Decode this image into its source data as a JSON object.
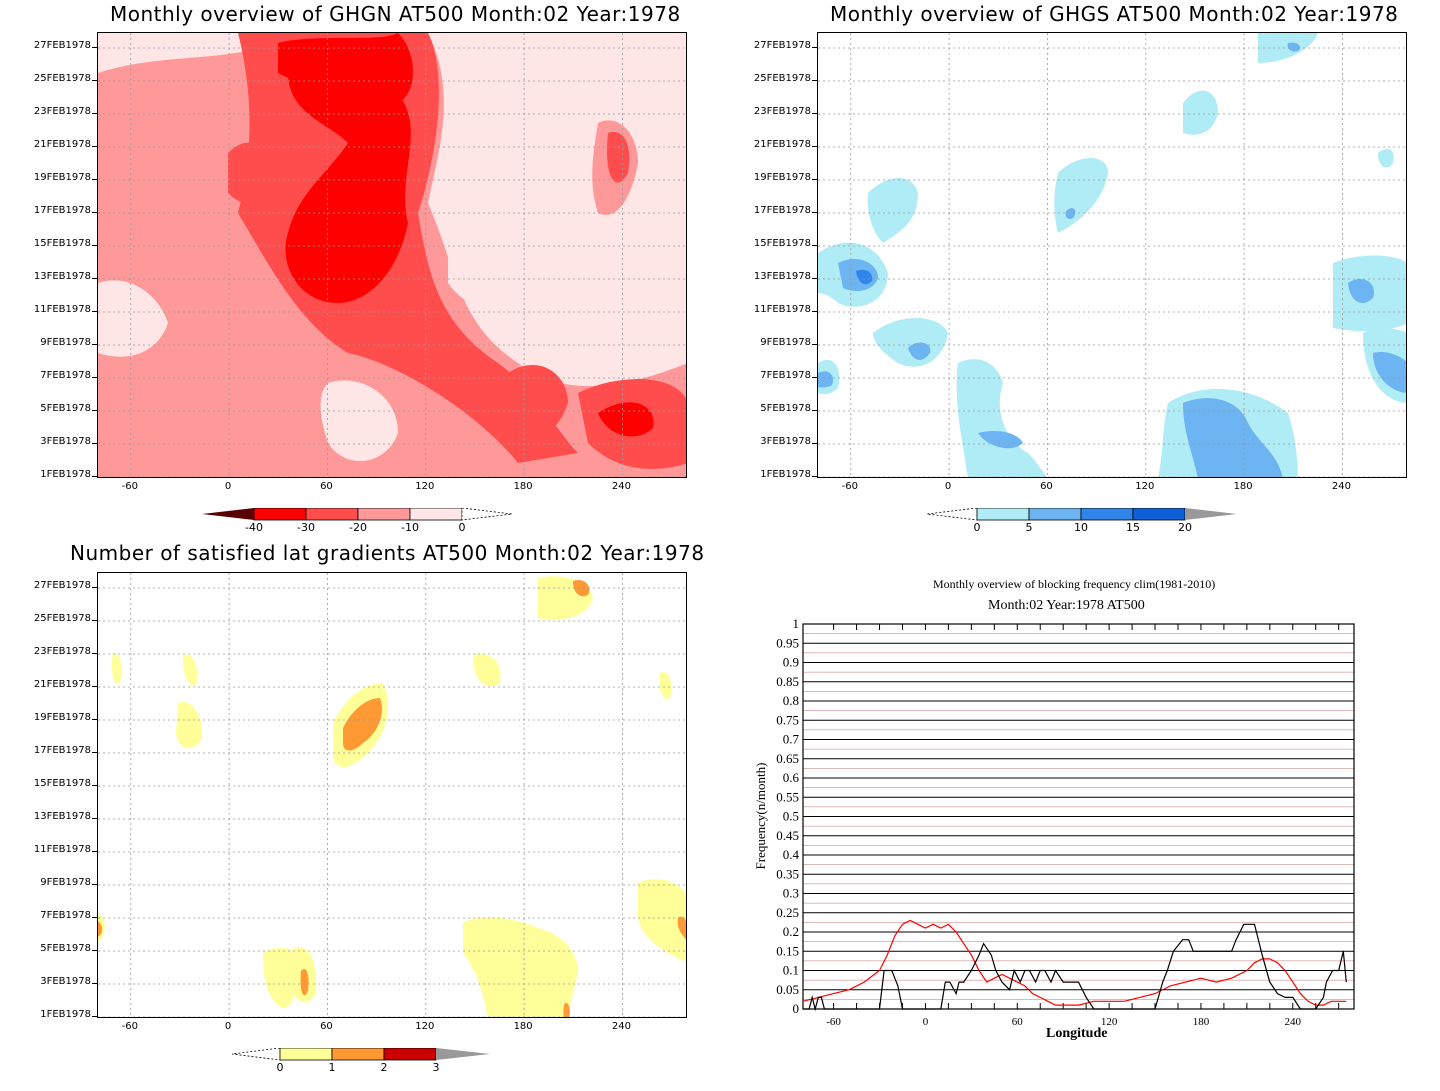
{
  "colors": {
    "red_levels": [
      "#5a0000",
      "#ff0000",
      "#ff4c4c",
      "#ff9999",
      "#ffe6e6"
    ],
    "blue_levels": [
      "#b0ecf6",
      "#6cb4f2",
      "#2f86e8",
      "#0f5fd6",
      "#999999"
    ],
    "yellow_levels": [
      "#ffff99",
      "#ff9933",
      "#cc0000",
      "#999999"
    ],
    "clim_line": "#ff0000",
    "year_line": "#000000"
  },
  "y_ticks": [
    "1FEB1978",
    "3FEB1978",
    "5FEB1978",
    "7FEB1978",
    "9FEB1978",
    "11FEB1978",
    "13FEB1978",
    "15FEB1978",
    "17FEB1978",
    "19FEB1978",
    "21FEB1978",
    "23FEB1978",
    "25FEB1978",
    "27FEB1978"
  ],
  "x_ticks": [
    "-60",
    "0",
    "60",
    "120",
    "180",
    "240"
  ],
  "chart_data": [
    {
      "type": "heatmap",
      "title": "Monthly overview of GHGN AT500 Month:02 Year:1978",
      "xlabel": "",
      "ylabel": "",
      "x_range": [
        -80,
        280
      ],
      "colorbar": {
        "levels": [
          "-40",
          "-30",
          "-20",
          "-10",
          "0"
        ]
      }
    },
    {
      "type": "heatmap",
      "title": "Monthly overview of GHGS AT500 Month:02 Year:1978",
      "xlabel": "",
      "ylabel": "",
      "x_range": [
        -80,
        280
      ],
      "colorbar": {
        "levels": [
          "0",
          "5",
          "10",
          "15",
          "20"
        ]
      }
    },
    {
      "type": "heatmap",
      "title": "Number of satisfied lat gradients AT500 Month:02 Year:1978",
      "xlabel": "",
      "ylabel": "",
      "x_range": [
        -80,
        280
      ],
      "colorbar": {
        "levels": [
          "0",
          "1",
          "2",
          "3"
        ]
      }
    },
    {
      "type": "line",
      "title": "Monthly overview of blocking frequency clim(1981-2010)",
      "subtitle": "Month:02 Year:1978  AT500",
      "xlabel": "Longitude",
      "ylabel": "Frequency(n/month)",
      "xlim": [
        -80,
        280
      ],
      "ylim": [
        0,
        1
      ],
      "x_ticks": [
        "-60",
        "0",
        "60",
        "120",
        "180",
        "240"
      ],
      "y_ticks": [
        "0",
        "0.05",
        "0.1",
        "0.15",
        "0.2",
        "0.25",
        "0.3",
        "0.35",
        "0.4",
        "0.45",
        "0.5",
        "0.55",
        "0.6",
        "0.65",
        "0.7",
        "0.75",
        "0.8",
        "0.85",
        "0.9",
        "0.95",
        "1"
      ],
      "series": [
        {
          "x": [
            -80,
            -70,
            -60,
            -50,
            -40,
            -30,
            -25,
            -20,
            -15,
            -10,
            -5,
            0,
            5,
            10,
            15,
            20,
            25,
            30,
            35,
            40,
            45,
            50,
            55,
            60,
            65,
            70,
            75,
            80,
            85,
            90,
            100,
            110,
            120,
            130,
            140,
            150,
            160,
            170,
            180,
            190,
            200,
            210,
            215,
            220,
            225,
            230,
            235,
            240,
            245,
            250,
            255,
            260,
            265,
            270,
            275
          ],
          "values": [
            0.02,
            0.03,
            0.04,
            0.05,
            0.07,
            0.1,
            0.14,
            0.19,
            0.22,
            0.23,
            0.22,
            0.21,
            0.22,
            0.21,
            0.22,
            0.2,
            0.17,
            0.14,
            0.1,
            0.07,
            0.08,
            0.09,
            0.08,
            0.07,
            0.06,
            0.04,
            0.03,
            0.02,
            0.01,
            0.01,
            0.01,
            0.02,
            0.02,
            0.02,
            0.03,
            0.04,
            0.06,
            0.07,
            0.08,
            0.07,
            0.08,
            0.1,
            0.12,
            0.13,
            0.13,
            0.12,
            0.1,
            0.07,
            0.04,
            0.02,
            0.01,
            0.01,
            0.02,
            0.02,
            0.02
          ]
        },
        {
          "x": [
            -80,
            -76,
            -74,
            -72,
            -70,
            -68,
            -66,
            -50,
            -40,
            -30,
            -27,
            -22,
            -20,
            -18,
            -15,
            10,
            13,
            16,
            20,
            22,
            25,
            30,
            35,
            38,
            43,
            46,
            50,
            55,
            58,
            62,
            65,
            68,
            72,
            75,
            78,
            82,
            85,
            90,
            95,
            100,
            105,
            110,
            120,
            130,
            140,
            150,
            155,
            158,
            162,
            168,
            172,
            175,
            190,
            200,
            203,
            208,
            215,
            220,
            225,
            230,
            235,
            240,
            245,
            250,
            255,
            260,
            262,
            266,
            270,
            273,
            275
          ],
          "values": [
            0,
            0,
            0.03,
            0,
            0.03,
            0.03,
            0,
            0,
            0,
            0,
            0.1,
            0.1,
            0.08,
            0.06,
            0,
            0,
            0.07,
            0.07,
            0.04,
            0.07,
            0.07,
            0.1,
            0.14,
            0.17,
            0.14,
            0.1,
            0.07,
            0.05,
            0.1,
            0.07,
            0.1,
            0.1,
            0.07,
            0.1,
            0.1,
            0.07,
            0.1,
            0.07,
            0.07,
            0.07,
            0.03,
            0,
            0,
            0,
            0,
            0,
            0.07,
            0.1,
            0.15,
            0.18,
            0.18,
            0.15,
            0.15,
            0.15,
            0.18,
            0.22,
            0.22,
            0.14,
            0.07,
            0.04,
            0.03,
            0.03,
            0,
            0,
            0,
            0.03,
            0.07,
            0.1,
            0.1,
            0.15,
            0.07
          ]
        }
      ]
    }
  ]
}
